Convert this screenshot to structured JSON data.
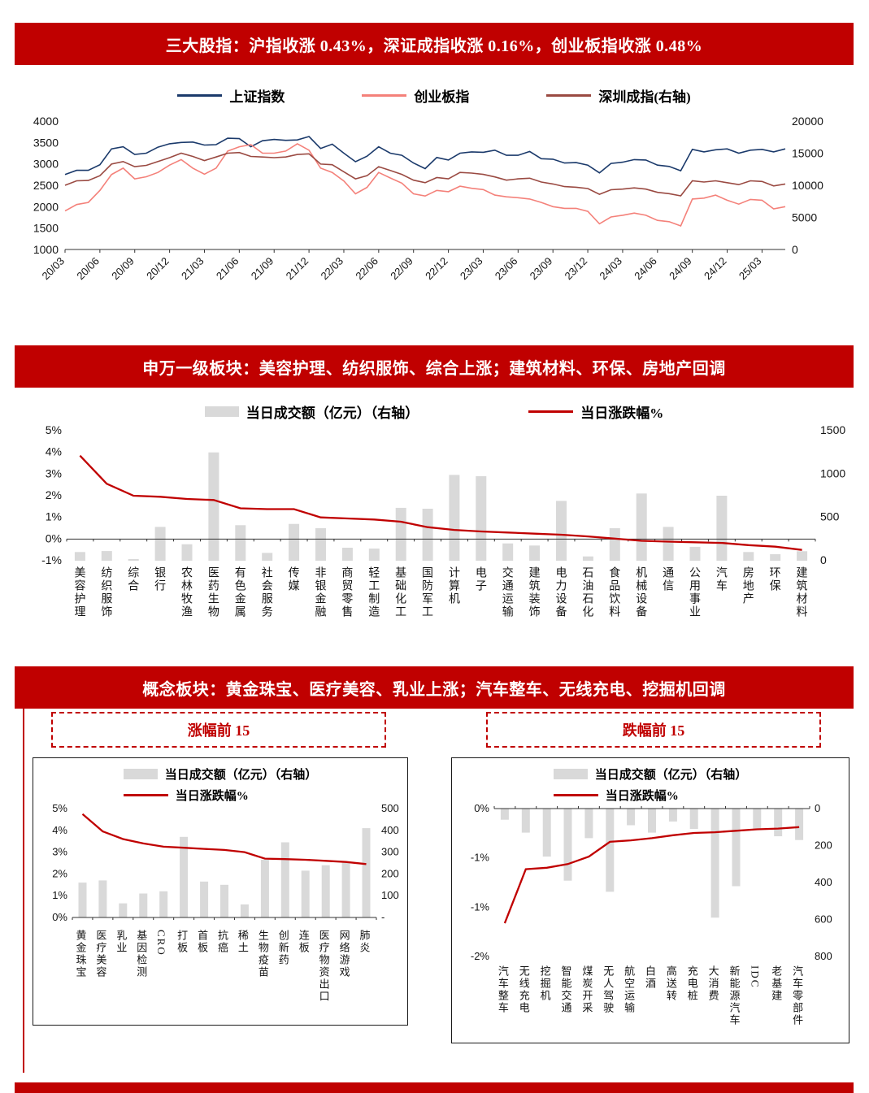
{
  "banners": {
    "indices": "三大股指：沪指收涨 0.43%，深证成指收涨 0.16%，创业板指收涨 0.48%",
    "sectors": "申万一级板块：美容护理、纺织服饰、综合上涨；建筑材料、环保、房地产回调",
    "concept": "概念板块：黄金珠宝、医疗美容、乳业上涨；汽车整车、无线充电、挖掘机回调",
    "gainers_box": "涨幅前 15",
    "losers_box": "跌幅前 15"
  },
  "colors": {
    "banner_red": "#c00000",
    "line_red": "#c00000",
    "bar_gray": "#d9d9d9",
    "sh_blue": "#1b3a6b",
    "cyb_pink": "#f4817a",
    "sz_brown": "#9a4a42"
  },
  "chart_data": [
    {
      "type": "line",
      "title": "三大股指走势",
      "x_ticks": [
        "20/03",
        "20/06",
        "20/09",
        "20/12",
        "21/03",
        "21/06",
        "21/09",
        "21/12",
        "22/03",
        "22/06",
        "22/09",
        "22/12",
        "23/03",
        "23/06",
        "23/09",
        "23/12",
        "24/03",
        "24/06",
        "24/09",
        "24/12",
        "25/03"
      ],
      "ylim_left": [
        1000,
        4000
      ],
      "yticks_left": [
        4000,
        3500,
        3000,
        2500,
        2000,
        1500,
        1000
      ],
      "ylim_right": [
        0,
        20000
      ],
      "yticks_right": [
        20000,
        15000,
        10000,
        5000,
        0
      ],
      "series": [
        {
          "name": "上证指数",
          "axis": "left",
          "color": "#1b3a6b",
          "values": [
            2750,
            2850,
            2850,
            2980,
            3350,
            3400,
            3220,
            3250,
            3390,
            3470,
            3500,
            3510,
            3440,
            3450,
            3600,
            3590,
            3400,
            3540,
            3570,
            3550,
            3560,
            3640,
            3360,
            3460,
            3250,
            3050,
            3180,
            3400,
            3250,
            3200,
            3020,
            2890,
            3150,
            3090,
            3250,
            3280,
            3270,
            3320,
            3200,
            3200,
            3290,
            3120,
            3110,
            3020,
            3030,
            2970,
            2790,
            3010,
            3040,
            3100,
            3090,
            2970,
            2940,
            2840,
            3340,
            3280,
            3330,
            3350,
            3250,
            3320,
            3340,
            3280,
            3350
          ]
        },
        {
          "name": "创业板指",
          "axis": "left",
          "color": "#f4817a",
          "values": [
            1900,
            2050,
            2100,
            2380,
            2750,
            2900,
            2650,
            2700,
            2800,
            2970,
            3100,
            2900,
            2760,
            2900,
            3300,
            3400,
            3450,
            3250,
            3250,
            3300,
            3470,
            3320,
            2900,
            2800,
            2600,
            2300,
            2450,
            2800,
            2670,
            2550,
            2300,
            2250,
            2380,
            2350,
            2480,
            2430,
            2400,
            2270,
            2230,
            2210,
            2180,
            2100,
            2000,
            1960,
            1960,
            1890,
            1600,
            1760,
            1800,
            1850,
            1800,
            1680,
            1650,
            1550,
            2180,
            2200,
            2270,
            2150,
            2060,
            2170,
            2150,
            1950,
            2000
          ]
        },
        {
          "name": "深圳成指(右轴)",
          "axis": "right",
          "color": "#9a4a42",
          "values": [
            10000,
            10700,
            10750,
            11500,
            13300,
            13700,
            12900,
            13100,
            13700,
            14300,
            15000,
            14500,
            13850,
            14400,
            15000,
            15100,
            14500,
            14400,
            14300,
            14400,
            14800,
            14900,
            13300,
            13200,
            12100,
            11000,
            11500,
            12900,
            12300,
            11700,
            10800,
            10400,
            11200,
            11000,
            12000,
            11900,
            11700,
            11300,
            10800,
            11000,
            11100,
            10500,
            10200,
            9800,
            9700,
            9500,
            8600,
            9300,
            9400,
            9600,
            9400,
            8900,
            8700,
            8350,
            10700,
            10500,
            10700,
            10400,
            10100,
            10700,
            10600,
            9900,
            10200
          ]
        }
      ]
    },
    {
      "type": "bar+line",
      "title": "申万一级板块当日表现",
      "legend_bar": "当日成交额（亿元）（右轴）",
      "legend_line": "当日涨跌幅%",
      "categories": [
        "美容护理",
        "纺织服饰",
        "综合",
        "银行",
        "农林牧渔",
        "医药生物",
        "有色金属",
        "社会服务",
        "传媒",
        "非银金融",
        "商贸零售",
        "轻工制造",
        "基础化工",
        "国防军工",
        "计算机",
        "电子",
        "交通运输",
        "建筑装饰",
        "电力设备",
        "石油石化",
        "食品饮料",
        "机械设备",
        "通信",
        "公用事业",
        "汽车",
        "房地产",
        "环保",
        "建筑材料"
      ],
      "bars": [
        100,
        112,
        20,
        390,
        190,
        1250,
        410,
        90,
        425,
        375,
        150,
        140,
        610,
        600,
        990,
        975,
        200,
        175,
        690,
        50,
        375,
        775,
        390,
        160,
        750,
        100,
        75,
        110
      ],
      "line": [
        3.85,
        2.55,
        2.0,
        1.95,
        1.85,
        1.8,
        1.42,
        1.38,
        1.38,
        1.0,
        0.95,
        0.9,
        0.8,
        0.55,
        0.42,
        0.35,
        0.3,
        0.25,
        0.2,
        0.12,
        0.02,
        -0.08,
        -0.12,
        -0.15,
        -0.18,
        -0.28,
        -0.35,
        -0.5
      ],
      "ylim_left": [
        -1,
        5
      ],
      "yticks_left": [
        "5%",
        "4%",
        "3%",
        "2%",
        "1%",
        "0%",
        "-1%"
      ],
      "ylim_right": [
        0,
        1500
      ],
      "yticks_right": [
        "1500",
        "1000",
        "500",
        "0"
      ]
    },
    {
      "type": "bar+line",
      "title": "涨幅前 15",
      "legend_bar": "当日成交额（亿元）（右轴）",
      "legend_line": "当日涨跌幅%",
      "categories": [
        "黄金珠宝",
        "医疗美容",
        "乳业",
        "基因检测",
        "CRO",
        "打板",
        "首板",
        "抗癌",
        "稀土",
        "生物疫苗",
        "创新药",
        "连板",
        "医疗物资出口",
        "网络游戏",
        "肺炎"
      ],
      "bars": [
        160,
        170,
        65,
        110,
        120,
        370,
        165,
        150,
        60,
        265,
        345,
        215,
        240,
        255,
        410
      ],
      "line": [
        4.75,
        3.95,
        3.6,
        3.4,
        3.25,
        3.2,
        3.15,
        3.1,
        3.0,
        2.7,
        2.68,
        2.65,
        2.6,
        2.55,
        2.45
      ],
      "ylim_left": [
        0,
        5
      ],
      "yticks_left": [
        "5%",
        "4%",
        "3%",
        "2%",
        "1%",
        "0%"
      ],
      "ylim_right": [
        0,
        500
      ],
      "yticks_right": [
        "500",
        "400",
        "300",
        "200",
        "100",
        "-"
      ]
    },
    {
      "type": "bar+line",
      "title": "跌幅前 15",
      "legend_bar": "当日成交额（亿元）（右轴）",
      "legend_line": "当日涨跌幅%",
      "categories": [
        "汽车整车",
        "无线充电",
        "挖掘机",
        "智能交通",
        "煤炭开采",
        "无人驾驶",
        "航空运输",
        "白酒",
        "高送转",
        "充电桩",
        "大消费",
        "新能源汽车",
        "IDC",
        "老基建",
        "汽车零部件"
      ],
      "bars": [
        60,
        130,
        260,
        390,
        160,
        450,
        90,
        130,
        70,
        110,
        590,
        420,
        110,
        150,
        170
      ],
      "line": [
        -1.55,
        -0.82,
        -0.8,
        -0.75,
        -0.65,
        -0.45,
        -0.43,
        -0.4,
        -0.36,
        -0.33,
        -0.32,
        -0.3,
        -0.28,
        -0.27,
        -0.25
      ],
      "ylim_left": [
        -2,
        0
      ],
      "yticks_left": [
        "0%",
        "-1%",
        "-1%",
        "-2%"
      ],
      "ylim_right": [
        0,
        800
      ],
      "yticks_right": [
        "0",
        "200",
        "400",
        "600",
        "800"
      ]
    }
  ]
}
